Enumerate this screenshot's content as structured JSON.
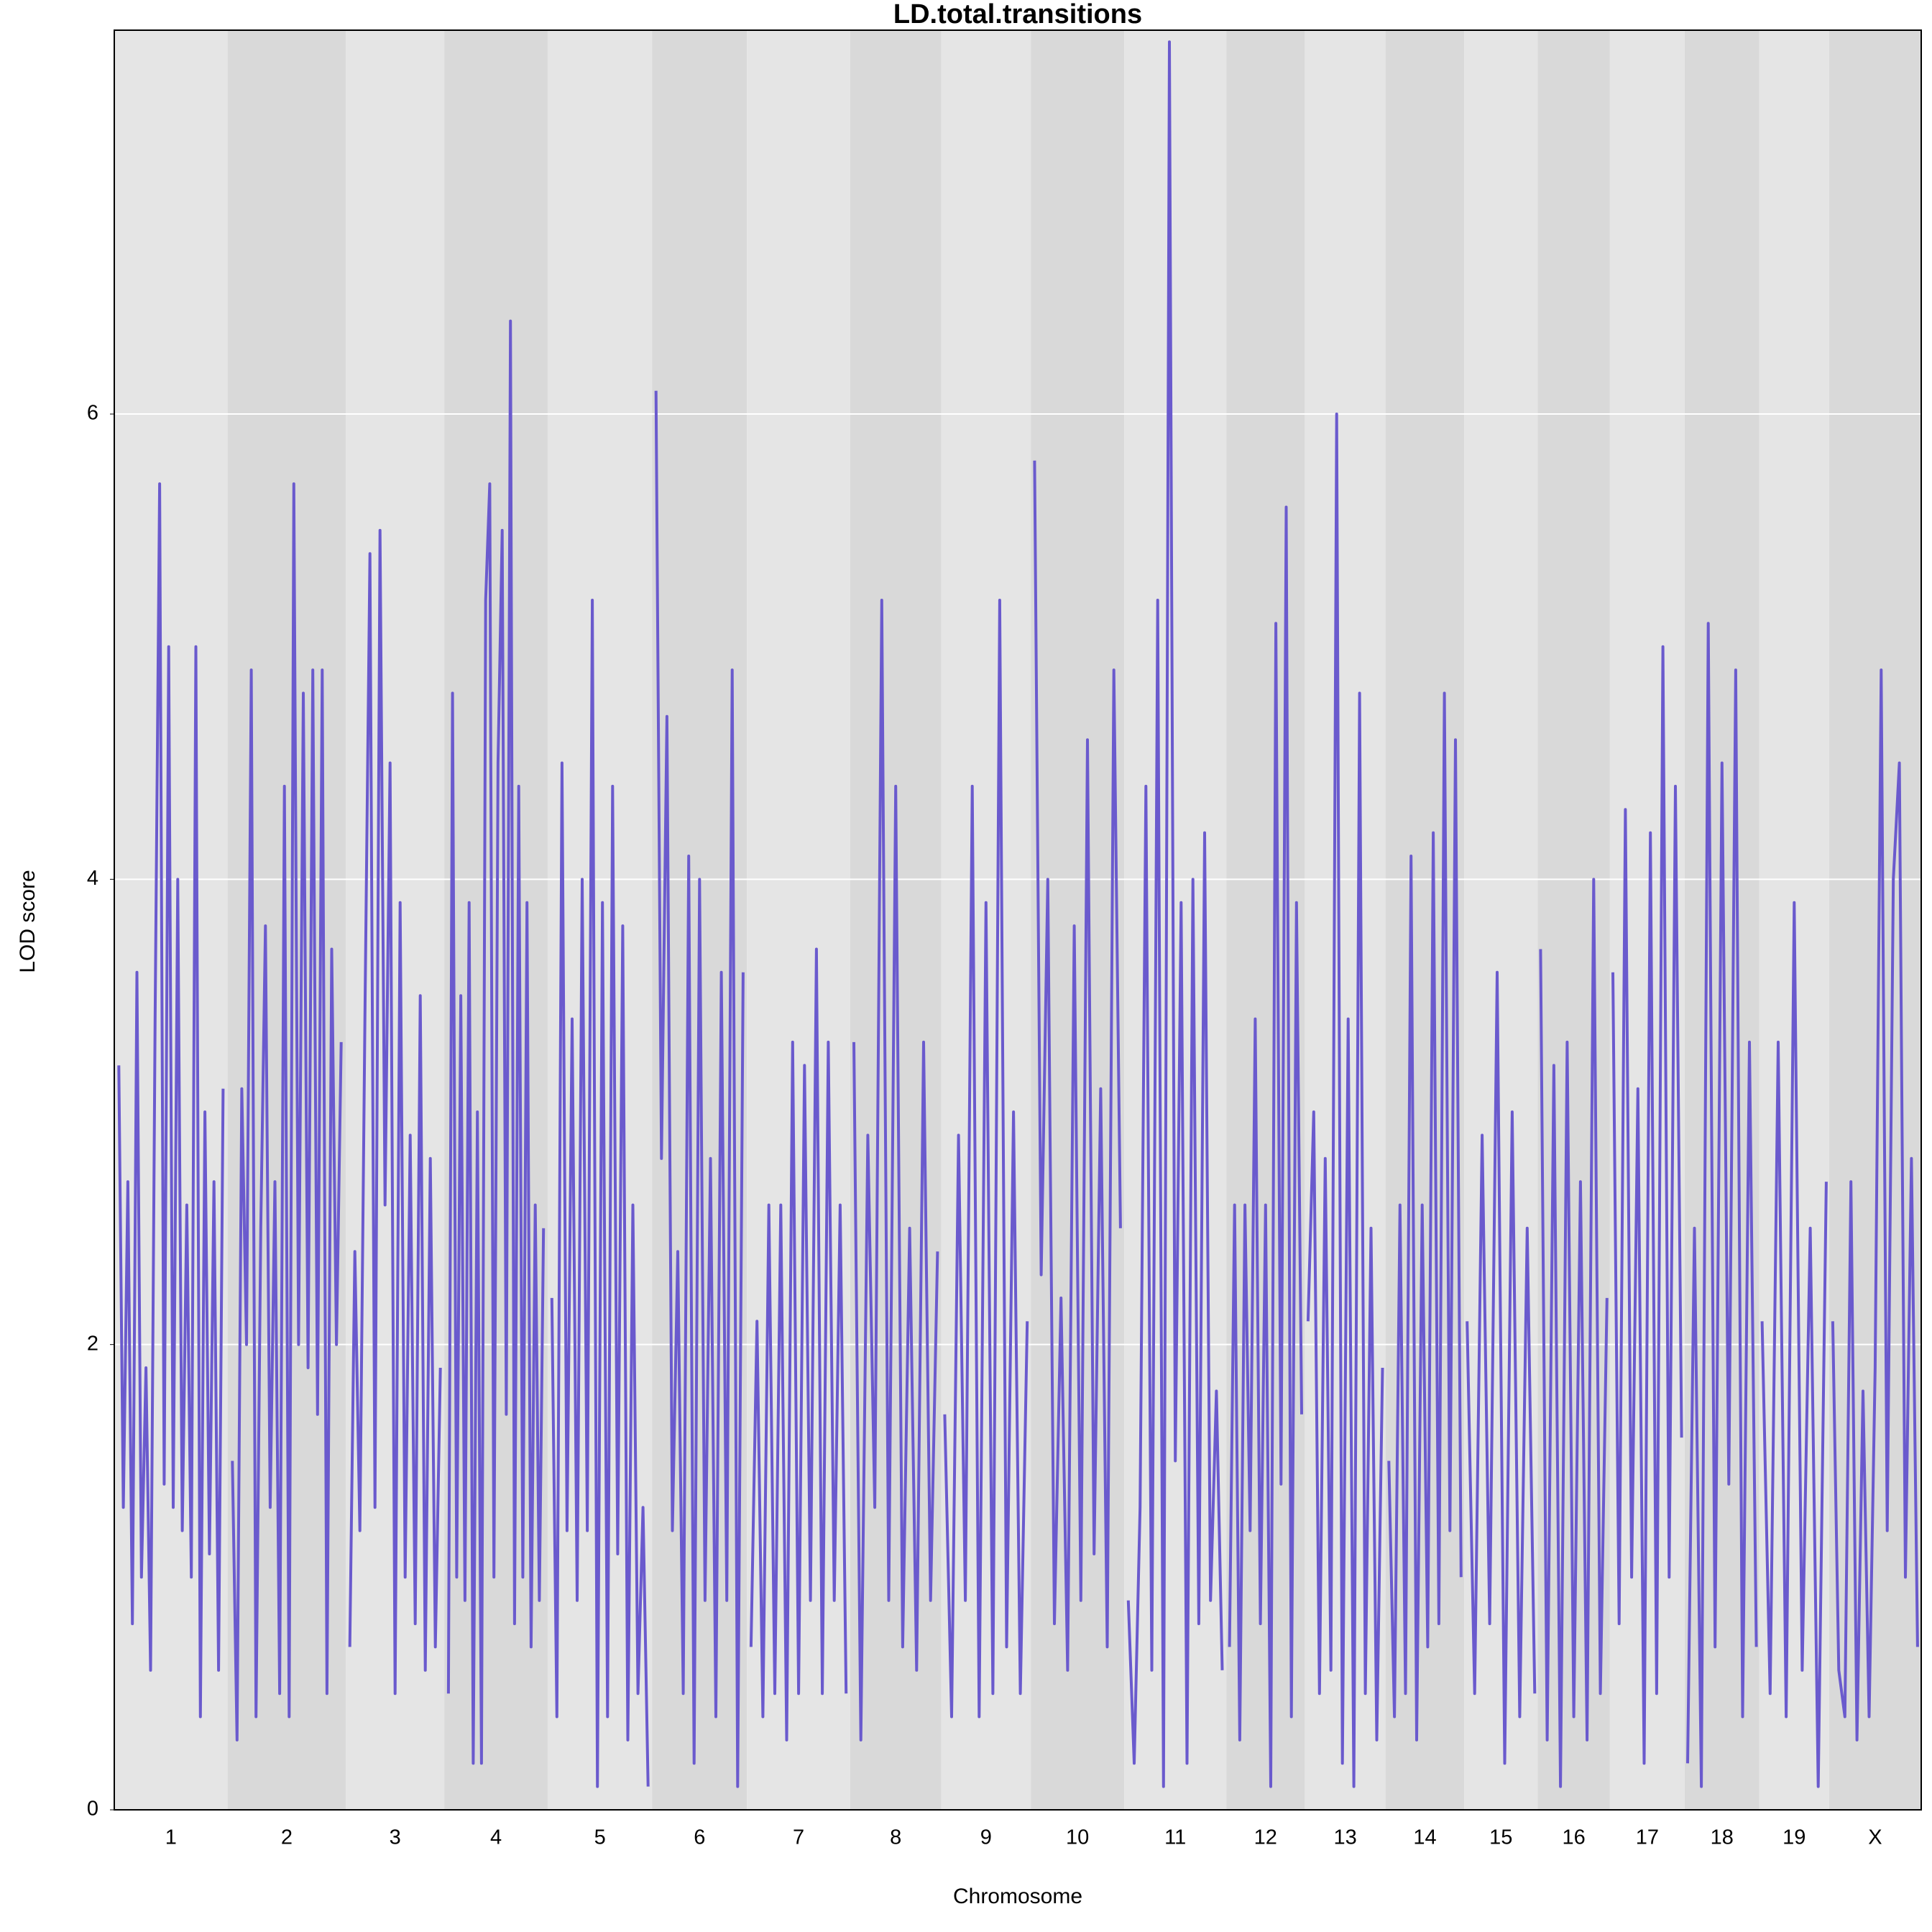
{
  "chart_data": {
    "type": "line",
    "title": "LD.total.transitions",
    "xlabel": "Chromosome",
    "ylabel": "LOD score",
    "color": "#6a5acd",
    "grid": true,
    "ylim": [
      0,
      7.65
    ],
    "yticks": [
      0,
      2,
      4,
      6
    ],
    "categories": [
      "1",
      "2",
      "3",
      "4",
      "5",
      "6",
      "7",
      "8",
      "9",
      "10",
      "11",
      "12",
      "13",
      "14",
      "15",
      "16",
      "17",
      "18",
      "19",
      "X"
    ],
    "values": [
      [
        3.2,
        1.3,
        2.7,
        0.8,
        3.6,
        1.0,
        1.9,
        0.6,
        3.4,
        5.7,
        1.4,
        5.0,
        1.3,
        4.0,
        1.2,
        2.6,
        1.0,
        5.0,
        0.4,
        3.0,
        1.1,
        2.7,
        0.6,
        3.1
      ],
      [
        1.5,
        0.3,
        3.1,
        2.0,
        4.9,
        0.4,
        2.5,
        3.8,
        1.3,
        2.7,
        0.5,
        4.4,
        0.4,
        5.7,
        2.0,
        4.8,
        1.9,
        4.9,
        1.7,
        4.9,
        0.5,
        3.7,
        2.0,
        3.3
      ],
      [
        0.7,
        2.4,
        1.2,
        3.4,
        5.4,
        1.3,
        5.5,
        2.6,
        4.5,
        0.5,
        3.9,
        1.0,
        2.9,
        0.8,
        3.5,
        0.6,
        2.8,
        0.7,
        1.9
      ],
      [
        0.5,
        4.8,
        1.0,
        3.5,
        0.9,
        3.9,
        0.2,
        3.0,
        0.2,
        5.2,
        5.7,
        1.0,
        4.5,
        5.5,
        1.7,
        6.4,
        0.8,
        4.4,
        1.0,
        3.9,
        0.7,
        2.6,
        0.9,
        2.5
      ],
      [
        2.2,
        0.4,
        4.5,
        1.2,
        3.4,
        0.9,
        4.0,
        1.2,
        5.2,
        0.1,
        3.9,
        0.4,
        4.4,
        1.1,
        3.8,
        0.3,
        2.6,
        0.5,
        1.3,
        0.1
      ],
      [
        6.1,
        2.8,
        4.7,
        1.2,
        2.4,
        0.5,
        4.1,
        0.2,
        4.0,
        0.9,
        2.8,
        0.4,
        3.6,
        0.9,
        4.9,
        0.1,
        3.6
      ],
      [
        0.7,
        2.1,
        0.4,
        2.6,
        0.5,
        2.6,
        0.3,
        3.3,
        0.5,
        3.2,
        0.9,
        3.7,
        0.5,
        3.3,
        0.9,
        2.6,
        0.5
      ],
      [
        3.3,
        0.3,
        2.9,
        1.3,
        5.2,
        0.9,
        4.4,
        0.7,
        2.5,
        0.6,
        3.3,
        0.9,
        2.4
      ],
      [
        1.7,
        0.4,
        2.9,
        0.9,
        4.4,
        0.4,
        3.9,
        0.5,
        5.2,
        0.7,
        3.0,
        0.5,
        2.1
      ],
      [
        5.8,
        2.3,
        4.0,
        0.8,
        2.2,
        0.6,
        3.8,
        0.9,
        4.6,
        1.1,
        3.1,
        0.7,
        4.9,
        2.5
      ],
      [
        0.9,
        0.2,
        1.3,
        4.4,
        0.6,
        5.2,
        0.1,
        7.6,
        1.5,
        3.9,
        0.2,
        4.0,
        0.8,
        4.2,
        0.9,
        1.8,
        0.6
      ],
      [
        0.7,
        2.6,
        0.3,
        2.6,
        1.2,
        3.4,
        0.8,
        2.6,
        0.1,
        5.1,
        1.4,
        5.6,
        0.4,
        3.9,
        1.7
      ],
      [
        2.1,
        3.0,
        0.5,
        2.8,
        0.6,
        6.0,
        0.2,
        3.4,
        0.1,
        4.8,
        0.5,
        2.5,
        0.3,
        1.9
      ],
      [
        1.5,
        0.4,
        2.6,
        0.5,
        4.1,
        0.3,
        2.6,
        0.7,
        4.2,
        0.8,
        4.8,
        1.2,
        4.6,
        1.0
      ],
      [
        2.1,
        0.5,
        2.9,
        0.8,
        3.6,
        0.2,
        3.0,
        0.4,
        2.5,
        0.5
      ],
      [
        3.7,
        0.3,
        3.2,
        0.1,
        3.3,
        0.4,
        2.7,
        0.3,
        4.0,
        0.5,
        2.2
      ],
      [
        3.6,
        0.8,
        4.3,
        1.0,
        3.1,
        0.2,
        4.2,
        0.5,
        5.0,
        1.0,
        4.4,
        1.6
      ],
      [
        0.2,
        2.5,
        0.1,
        5.1,
        0.7,
        4.5,
        1.4,
        4.9,
        0.4,
        3.3,
        0.7
      ],
      [
        2.1,
        0.5,
        3.3,
        0.4,
        3.9,
        0.6,
        2.5,
        0.1,
        2.7
      ],
      [
        2.1,
        0.6,
        0.4,
        2.7,
        0.3,
        1.8,
        0.4,
        1.9,
        4.9,
        1.2,
        4.0,
        4.5,
        1.0,
        2.8,
        0.7
      ]
    ]
  }
}
